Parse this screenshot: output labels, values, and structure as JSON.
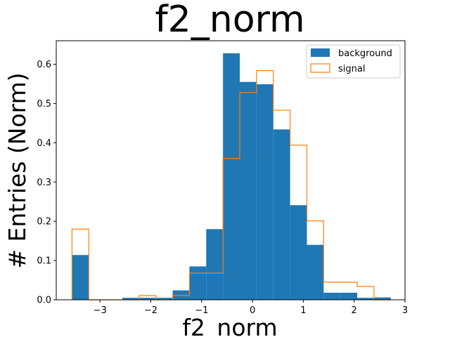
{
  "chart_data": {
    "type": "bar",
    "title": "f2_norm",
    "xlabel": "f2_norm",
    "ylabel": "# Entries (Norm)",
    "xlim": [
      -3.86,
      3.0
    ],
    "ylim": [
      0,
      0.66
    ],
    "xticks": [
      -3,
      -2,
      -1,
      0,
      1,
      2,
      3
    ],
    "yticks": [
      0.0,
      0.1,
      0.2,
      0.3,
      0.4,
      0.5,
      0.6
    ],
    "xtick_labels": [
      "−3",
      "−2",
      "−1",
      "0",
      "1",
      "2",
      "3"
    ],
    "ytick_labels": [
      "0.0",
      "0.1",
      "0.2",
      "0.3",
      "0.4",
      "0.5",
      "0.6"
    ],
    "legend_position": "upper-right",
    "bin_edges": [
      -3.55,
      -3.22,
      -2.89,
      -2.56,
      -2.23,
      -1.9,
      -1.57,
      -1.24,
      -0.91,
      -0.58,
      -0.25,
      0.08,
      0.41,
      0.74,
      1.07,
      1.4,
      1.73,
      2.06,
      2.39,
      2.72
    ],
    "series": [
      {
        "name": "background",
        "style": "filled",
        "color": "#1f77b4",
        "values": [
          0.114,
          0.0,
          0.0,
          0.005,
          0.005,
          0.005,
          0.024,
          0.085,
          0.18,
          0.628,
          0.555,
          0.549,
          0.434,
          0.241,
          0.14,
          0.018,
          0.018,
          0.005,
          0.006
        ]
      },
      {
        "name": "signal",
        "style": "step",
        "color": "#ff7f0e",
        "values": [
          0.18,
          0.0,
          0.0,
          0.0,
          0.011,
          0.0,
          0.011,
          0.068,
          0.068,
          0.36,
          0.528,
          0.584,
          0.483,
          0.394,
          0.201,
          0.045,
          0.045,
          0.034,
          0.0
        ]
      }
    ]
  }
}
